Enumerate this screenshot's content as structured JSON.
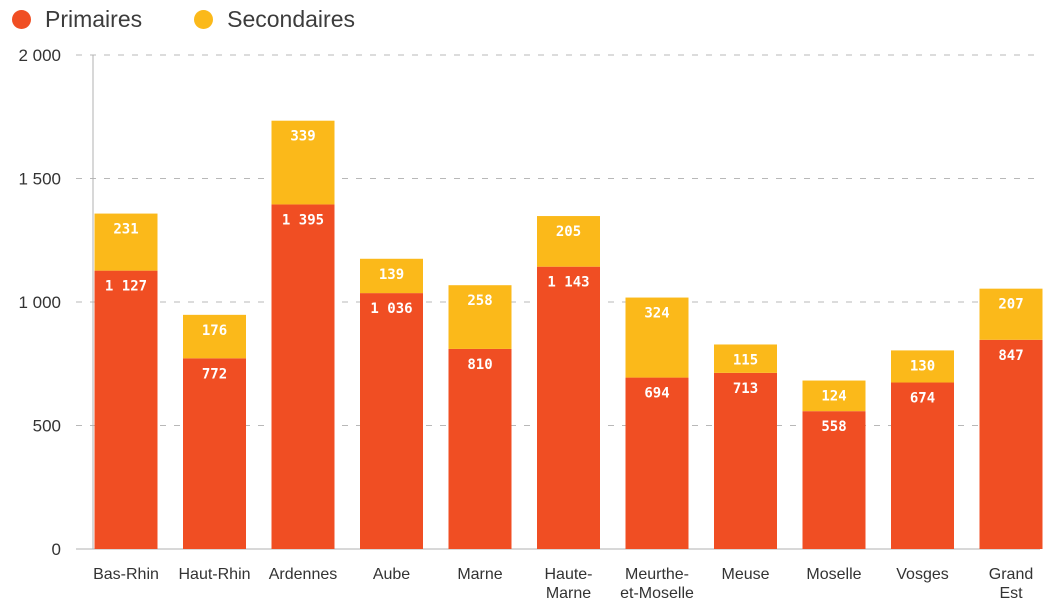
{
  "legend": {
    "primaires": "Primaires",
    "secondaires": "Secondaires"
  },
  "colors": {
    "primaires": "#f04e23",
    "secondaires": "#fbb91a",
    "grid": "#b8b8b8",
    "axis": "#b0b0b0",
    "text": "#333333",
    "bar_label": "#ffffff"
  },
  "chart_data": {
    "type": "bar",
    "stacked": true,
    "categories": [
      [
        "Bas-Rhin"
      ],
      [
        "Haut-Rhin"
      ],
      [
        "Ardennes"
      ],
      [
        "Aube"
      ],
      [
        "Marne"
      ],
      [
        "Haute-",
        "Marne"
      ],
      [
        "Meurthe-",
        "et-Moselle"
      ],
      [
        "Meuse"
      ],
      [
        "Moselle"
      ],
      [
        "Vosges"
      ],
      [
        "Grand",
        "Est"
      ]
    ],
    "series": [
      {
        "name": "Primaires",
        "values": [
          1127,
          772,
          1395,
          1036,
          810,
          1143,
          694,
          713,
          558,
          674,
          847
        ],
        "labels": [
          "1 127",
          "772",
          "1 395",
          "1 036",
          "810",
          "1 143",
          "694",
          "713",
          "558",
          "674",
          "847"
        ]
      },
      {
        "name": "Secondaires",
        "values": [
          231,
          176,
          339,
          139,
          258,
          205,
          324,
          115,
          124,
          130,
          207
        ],
        "labels": [
          "231",
          "176",
          "339",
          "139",
          "258",
          "205",
          "324",
          "115",
          "124",
          "130",
          "207"
        ]
      }
    ],
    "yticks": [
      0,
      500,
      1000,
      1500,
      2000
    ],
    "ytick_labels": [
      "0",
      "500",
      "1 000",
      "1 500",
      "2 000"
    ],
    "ylim": [
      0,
      2000
    ],
    "grid": true,
    "legend_position": "top-left"
  }
}
